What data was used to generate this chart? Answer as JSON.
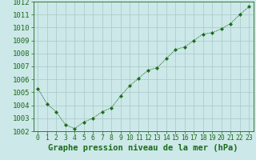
{
  "x": [
    0,
    1,
    2,
    3,
    4,
    5,
    6,
    7,
    8,
    9,
    10,
    11,
    12,
    13,
    14,
    15,
    16,
    17,
    18,
    19,
    20,
    21,
    22,
    23
  ],
  "y": [
    1005.3,
    1004.1,
    1003.5,
    1002.5,
    1002.2,
    1002.7,
    1003.0,
    1003.5,
    1003.8,
    1004.7,
    1005.5,
    1006.1,
    1006.7,
    1006.9,
    1007.6,
    1008.3,
    1008.5,
    1009.0,
    1009.5,
    1009.6,
    1009.9,
    1010.3,
    1011.0,
    1011.6
  ],
  "line_color": "#1a6b1a",
  "marker": "D",
  "marker_size": 2.2,
  "background_color": "#cce8e8",
  "grid_color": "#aac8c8",
  "xlabel": "Graphe pression niveau de la mer (hPa)",
  "xlabel_color": "#1a6b1a",
  "ylim": [
    1002,
    1012
  ],
  "xlim_min": -0.5,
  "xlim_max": 23.5,
  "yticks": [
    1002,
    1003,
    1004,
    1005,
    1006,
    1007,
    1008,
    1009,
    1010,
    1011,
    1012
  ],
  "xtick_labels": [
    "0",
    "1",
    "2",
    "3",
    "4",
    "5",
    "6",
    "7",
    "8",
    "9",
    "10",
    "11",
    "12",
    "13",
    "14",
    "15",
    "16",
    "17",
    "18",
    "19",
    "20",
    "21",
    "22",
    "23"
  ],
  "tick_color": "#1a6b1a",
  "spine_color": "#1a6b1a",
  "font_size_xlabel": 7.5,
  "font_size_ytick": 6.5,
  "font_size_xtick": 5.8
}
